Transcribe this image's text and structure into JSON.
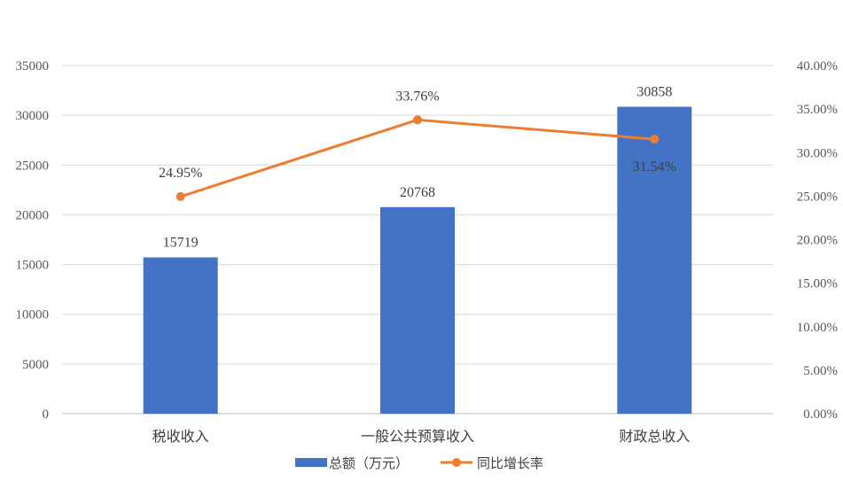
{
  "chart_data": {
    "type": "bar",
    "categories": [
      "税收收入",
      "一般公共预算收入",
      "财政总收入"
    ],
    "series": [
      {
        "name": "总额（万元）",
        "type": "bar",
        "axis": "left",
        "color": "#4472C4",
        "values": [
          15719,
          20768,
          30858
        ],
        "labels": [
          "15719",
          "20768",
          "30858"
        ]
      },
      {
        "name": "同比增长率",
        "type": "line",
        "axis": "right",
        "color": "#ED7D31",
        "values": [
          24.95,
          33.76,
          31.54
        ],
        "labels": [
          "24.95%",
          "33.76%",
          "31.54%"
        ]
      }
    ],
    "y_left": {
      "range": [
        0,
        35000
      ],
      "ticks": [
        "0",
        "5000",
        "10000",
        "15000",
        "20000",
        "25000",
        "30000",
        "35000"
      ]
    },
    "y_right": {
      "range": [
        0,
        40
      ],
      "ticks": [
        "0.00%",
        "5.00%",
        "10.00%",
        "15.00%",
        "20.00%",
        "25.00%",
        "30.00%",
        "35.00%",
        "40.00%"
      ]
    },
    "grid": true,
    "legend": "bottom",
    "title": "",
    "xlabel": "",
    "ylabel": ""
  }
}
